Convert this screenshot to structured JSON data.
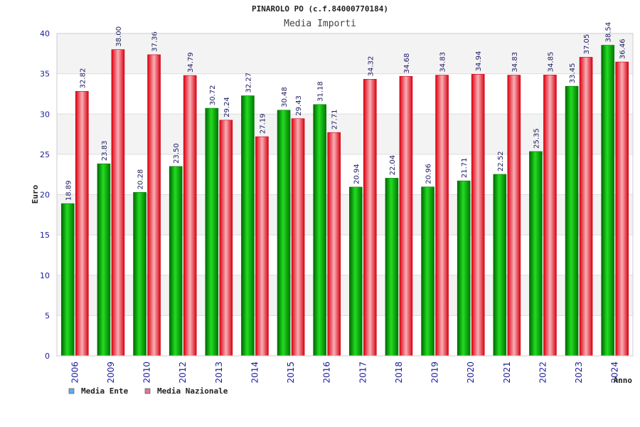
{
  "chart_data": {
    "type": "bar",
    "title": "PINAROLO PO (c.f.84000770184)",
    "subtitle": "Media Importi",
    "xlabel": "Anno",
    "ylabel": "Euro",
    "ylim": [
      0,
      40
    ],
    "yticks": [
      "0",
      "5",
      "10",
      "15",
      "20",
      "25",
      "30",
      "35",
      "40"
    ],
    "categories": [
      "2006",
      "2009",
      "2010",
      "2012",
      "2013",
      "2014",
      "2015",
      "2016",
      "2017",
      "2018",
      "2019",
      "2020",
      "2021",
      "2022",
      "2023",
      "2024"
    ],
    "series": [
      {
        "name": "Media Ente",
        "color": "#00aa00",
        "legend_color": "#66aaee",
        "values": [
          18.89,
          23.83,
          20.28,
          23.5,
          30.72,
          32.27,
          30.48,
          31.18,
          20.94,
          22.04,
          20.96,
          21.71,
          22.52,
          25.35,
          33.45,
          38.54
        ],
        "labels": [
          "18.89",
          "23.83",
          "20.28",
          "23.50",
          "30.72",
          "32.27",
          "30.48",
          "31.18",
          "20.94",
          "22.04",
          "20.96",
          "21.71",
          "22.52",
          "25.35",
          "33.45",
          "38.54"
        ]
      },
      {
        "name": "Media Nazionale",
        "color": "#ee1122",
        "legend_color": "#dd7799",
        "values": [
          32.82,
          38.0,
          37.36,
          34.79,
          29.24,
          27.19,
          29.43,
          27.71,
          34.32,
          34.68,
          34.83,
          34.94,
          34.83,
          34.85,
          37.05,
          36.46
        ],
        "labels": [
          "32.82",
          "38.00",
          "37.36",
          "34.79",
          "29.24",
          "27.19",
          "29.43",
          "27.71",
          "34.32",
          "34.68",
          "34.83",
          "34.94",
          "34.83",
          "34.85",
          "37.05",
          "36.46"
        ]
      }
    ],
    "grid": true,
    "legend_position": "bottom-left"
  }
}
